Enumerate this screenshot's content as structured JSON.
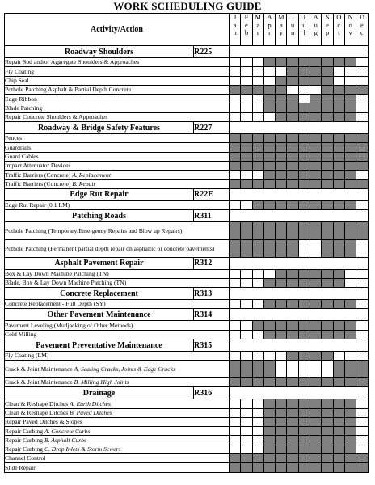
{
  "title": "WORK SCHEDULING GUIDE",
  "activity_header": "Activity/Action",
  "months": [
    [
      "J",
      "a",
      "n"
    ],
    [
      "F",
      "e",
      "b"
    ],
    [
      "M",
      "a",
      "r"
    ],
    [
      "A",
      "p",
      "r"
    ],
    [
      "M",
      "a",
      "y"
    ],
    [
      "J",
      "u",
      "n"
    ],
    [
      "J",
      "u",
      "l"
    ],
    [
      "A",
      "u",
      "g"
    ],
    [
      "S",
      "e",
      "p"
    ],
    [
      "O",
      "c",
      "t"
    ],
    [
      "N",
      "o",
      "v"
    ],
    [
      "D",
      "e",
      "c"
    ]
  ],
  "rows": [
    {
      "type": "section",
      "label": "Roadway Shoulders",
      "code": "R225"
    },
    {
      "type": "item",
      "label": "Repair Sod and/or Aggregate Shoulders & Approaches",
      "m": [
        0,
        0,
        0,
        1,
        1,
        1,
        1,
        1,
        1,
        1,
        1,
        0
      ]
    },
    {
      "type": "item",
      "label": "Fly Coating",
      "m": [
        0,
        0,
        0,
        0,
        0,
        1,
        1,
        1,
        1,
        0,
        0,
        0
      ]
    },
    {
      "type": "item",
      "label": "Chip Seal",
      "m": [
        0,
        0,
        0,
        0,
        1,
        1,
        1,
        1,
        1,
        0,
        0,
        0
      ]
    },
    {
      "type": "item",
      "label": "Pothole Patching Asphalt & Partial Depth Concrete",
      "m": [
        1,
        1,
        1,
        1,
        1,
        0,
        0,
        0,
        1,
        1,
        1,
        1
      ]
    },
    {
      "type": "item",
      "label": "Edge Ribbon",
      "m": [
        0,
        0,
        0,
        1,
        1,
        1,
        0,
        1,
        1,
        1,
        1,
        0
      ]
    },
    {
      "type": "item",
      "label": "Blade Patching",
      "m": [
        0,
        0,
        0,
        1,
        1,
        1,
        1,
        1,
        1,
        1,
        1,
        0
      ]
    },
    {
      "type": "item",
      "label": "Repair Concrete Shoulders & Approaches",
      "m": [
        0,
        0,
        0,
        0,
        1,
        1,
        1,
        1,
        1,
        1,
        1,
        0
      ]
    },
    {
      "type": "section",
      "label": "Roadway & Bridge Safety Features",
      "code": "R227"
    },
    {
      "type": "item",
      "label": "Fences",
      "m": [
        1,
        1,
        1,
        1,
        1,
        1,
        1,
        1,
        1,
        1,
        1,
        1
      ]
    },
    {
      "type": "item",
      "label": "Guardrails",
      "m": [
        1,
        1,
        1,
        1,
        1,
        1,
        1,
        1,
        1,
        1,
        1,
        1
      ]
    },
    {
      "type": "item",
      "label": "Guard Cables",
      "m": [
        1,
        1,
        1,
        1,
        1,
        1,
        1,
        1,
        1,
        1,
        1,
        1
      ]
    },
    {
      "type": "item",
      "label": "Impact Attenuator Devices",
      "m": [
        1,
        1,
        1,
        1,
        1,
        1,
        1,
        1,
        1,
        1,
        1,
        1
      ]
    },
    {
      "type": "item",
      "label": "Traffic Barriers (Concrete) ",
      "italic": "A. Replacement",
      "m": [
        0,
        0,
        0,
        1,
        1,
        1,
        1,
        1,
        1,
        1,
        1,
        0
      ]
    },
    {
      "type": "item",
      "label": "Traffic Barriers (Concrete) ",
      "italic": "B. Repair",
      "m": [
        1,
        1,
        1,
        1,
        1,
        1,
        1,
        1,
        1,
        1,
        1,
        1
      ]
    },
    {
      "type": "section",
      "label": "Edge Rut Repair",
      "code": "R22E"
    },
    {
      "type": "item",
      "label": "Edge Rut Repair (0.1 LM)",
      "m": [
        0,
        0,
        1,
        1,
        1,
        1,
        1,
        1,
        1,
        1,
        1,
        0
      ]
    },
    {
      "type": "section",
      "label": "Patching Roads",
      "code": "R311"
    },
    {
      "type": "item2",
      "label": "Pothole Patching (Temporary/Emergency Repairs and Blow up Repairs)",
      "m": [
        1,
        1,
        1,
        1,
        1,
        1,
        1,
        1,
        1,
        1,
        1,
        1
      ]
    },
    {
      "type": "item2",
      "label": "Pothole Patching (Permanent partial depth repair on asphaltic or concrete pavements)",
      "m": [
        1,
        1,
        1,
        1,
        1,
        1,
        0,
        0,
        1,
        1,
        1,
        0
      ]
    },
    {
      "type": "section",
      "label": "Asphalt Pavement Repair",
      "code": "R312"
    },
    {
      "type": "item",
      "label": "Box & Lay Down Machine Patching (TN)",
      "m": [
        0,
        0,
        0,
        0,
        1,
        1,
        1,
        1,
        1,
        1,
        0,
        0
      ]
    },
    {
      "type": "item",
      "label": "Blade, Box & Lay Down Machine Patching (TN)",
      "m": [
        0,
        0,
        0,
        1,
        1,
        1,
        1,
        1,
        1,
        1,
        0,
        0
      ]
    },
    {
      "type": "section",
      "label": "Concrete Replacement",
      "code": "R313"
    },
    {
      "type": "item",
      "label": "Concrete Replacement - Full Depth (SY)",
      "m": [
        0,
        0,
        0,
        1,
        1,
        1,
        1,
        1,
        1,
        1,
        1,
        0
      ]
    },
    {
      "type": "section",
      "label": "Other Pavement Maintenance",
      "code": "R314"
    },
    {
      "type": "item",
      "label": "Pavement Leveling (Mudjacking or Other Methods)",
      "m": [
        0,
        0,
        1,
        1,
        1,
        1,
        1,
        1,
        1,
        1,
        1,
        0
      ]
    },
    {
      "type": "item",
      "label": "Cold Milling",
      "m": [
        0,
        0,
        0,
        1,
        1,
        1,
        1,
        1,
        1,
        1,
        1,
        0
      ]
    },
    {
      "type": "section",
      "label": "Pavement Preventative Maintenance",
      "code": "R315"
    },
    {
      "type": "item",
      "label": "Fly Coating (LM)",
      "m": [
        0,
        0,
        0,
        0,
        0,
        1,
        1,
        1,
        1,
        0,
        0,
        0
      ]
    },
    {
      "type": "item2",
      "label": "Crack & Joint Maintenance ",
      "italic": "A. Sealing Cracks, Joints & Edge Cracks",
      "m": [
        1,
        1,
        1,
        1,
        0,
        0,
        0,
        0,
        0,
        1,
        1,
        1
      ]
    },
    {
      "type": "item",
      "label": "Crack & Joint Maintenance ",
      "italic": "B. Milling High Joints",
      "m": [
        1,
        1,
        1,
        1,
        1,
        1,
        1,
        1,
        1,
        1,
        1,
        1
      ]
    },
    {
      "type": "section",
      "label": "Drainage",
      "code": "R316"
    },
    {
      "type": "item",
      "label": "Clean & Reshape Ditches ",
      "italic": "A. Earth Ditches",
      "m": [
        0,
        0,
        0,
        1,
        1,
        1,
        1,
        1,
        1,
        1,
        1,
        0
      ]
    },
    {
      "type": "item",
      "label": "Clean & Reshape Ditches ",
      "italic": "B. Paved Ditches",
      "m": [
        0,
        0,
        0,
        1,
        1,
        1,
        1,
        1,
        1,
        1,
        1,
        0
      ]
    },
    {
      "type": "item",
      "label": "Repair Paved Ditches & Slopes",
      "m": [
        0,
        0,
        0,
        1,
        1,
        1,
        1,
        1,
        1,
        1,
        1,
        0
      ]
    },
    {
      "type": "item",
      "label": "Repair Curbing ",
      "italic": "A. Concrete Curbs",
      "m": [
        0,
        0,
        0,
        1,
        1,
        1,
        1,
        1,
        1,
        1,
        1,
        0
      ]
    },
    {
      "type": "item",
      "label": "Repair Curbing ",
      "italic": "B. Asphalt Curbs",
      "m": [
        0,
        0,
        0,
        1,
        1,
        1,
        1,
        1,
        1,
        1,
        1,
        0
      ]
    },
    {
      "type": "item",
      "label": "Repair Curbing ",
      "italic": "C. Drop Inlets & Storm Sewers",
      "m": [
        0,
        0,
        0,
        1,
        1,
        1,
        1,
        1,
        1,
        1,
        1,
        0
      ]
    },
    {
      "type": "item",
      "label": "Channel Control",
      "m": [
        1,
        1,
        1,
        1,
        1,
        1,
        1,
        1,
        1,
        1,
        1,
        1
      ]
    },
    {
      "type": "item",
      "label": "Slide Repair",
      "m": [
        1,
        1,
        1,
        1,
        1,
        1,
        1,
        1,
        1,
        1,
        1,
        1
      ]
    }
  ]
}
